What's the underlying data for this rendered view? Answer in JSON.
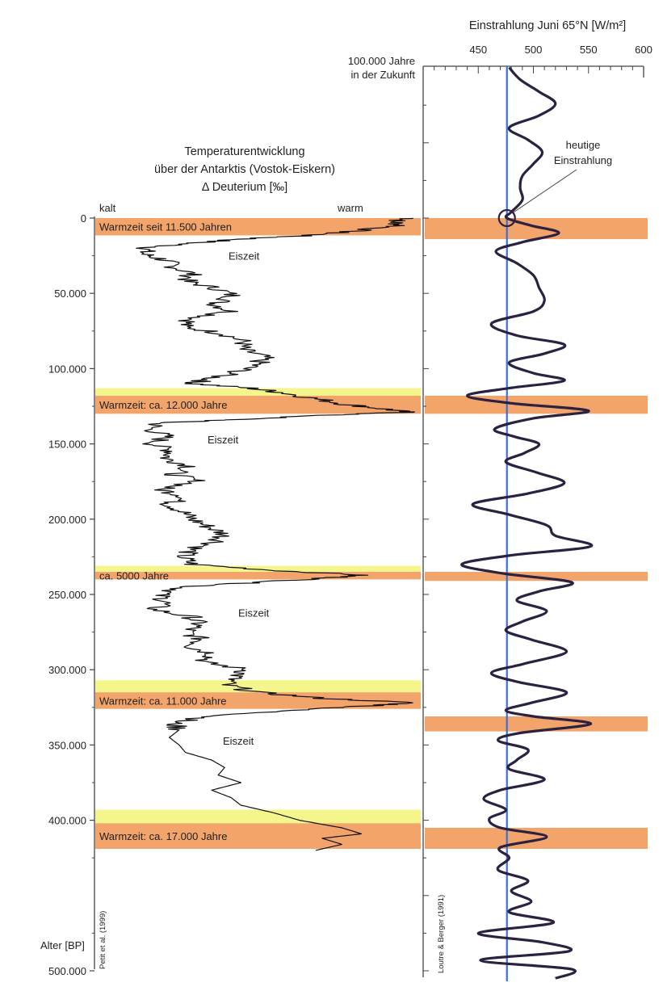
{
  "page": {
    "background": "#ffffff",
    "colors": {
      "warm_band": "#f2a46a",
      "transition_band": "#f4f58a",
      "curve": "#2b2140",
      "temperature_line": "#111111",
      "present_line": "#3d6fd6"
    }
  },
  "left_panel": {
    "title_lines": [
      "Temperaturentwicklung",
      "über der Antarktis (Vostok-Eiskern)",
      "Δ Deuterium [‰]"
    ],
    "label_cold": "kalt",
    "label_warm": "warm",
    "axis_title": "Alter [BP]",
    "credit": "Petit et al. (1999)",
    "glacial_labels": [
      "Eiszeit",
      "Eiszeit",
      "Eiszeit",
      "Eiszeit"
    ]
  },
  "right_panel": {
    "axis_title": "Einstrahlung Juni 65°N [W/m²]",
    "future_label_lines": [
      "100.000 Jahre",
      "in der Zukunft"
    ],
    "present_annotation_lines": [
      "heutige",
      "Einstrahlung"
    ],
    "credit": "Loutre & Berger (1991)"
  },
  "chart_data": [
    {
      "type": "line",
      "title": "Temperaturentwicklung über der Antarktis (Vostok-Eiskern) Δ Deuterium [‰]",
      "ylabel": "Alter [BP]",
      "y_axis": {
        "inverted": true,
        "ylim": [
          0,
          500000
        ],
        "ticks": [
          0,
          50000,
          100000,
          150000,
          200000,
          250000,
          300000,
          350000,
          400000,
          500000
        ],
        "tick_labels": [
          "0",
          "50.000",
          "100.000",
          "150.000",
          "200.000",
          "250.000",
          "300.000",
          "350.000",
          "400.000",
          "500.000"
        ]
      },
      "x_axis": {
        "label_left": "kalt",
        "label_right": "warm",
        "relative_range": [
          0,
          1
        ]
      },
      "series": [
        {
          "points": [
            [
              0,
              0.98
            ],
            [
              2000,
              0.92
            ],
            [
              5000,
              0.94
            ],
            [
              9000,
              0.78
            ],
            [
              11500,
              0.66
            ],
            [
              14000,
              0.45
            ],
            [
              17000,
              0.28
            ],
            [
              20000,
              0.16
            ],
            [
              24000,
              0.15
            ],
            [
              28000,
              0.22
            ],
            [
              32000,
              0.24
            ],
            [
              37000,
              0.3
            ],
            [
              42000,
              0.28
            ],
            [
              47000,
              0.38
            ],
            [
              52000,
              0.43
            ],
            [
              57000,
              0.37
            ],
            [
              62000,
              0.42
            ],
            [
              67000,
              0.3
            ],
            [
              72000,
              0.27
            ],
            [
              77000,
              0.4
            ],
            [
              82000,
              0.46
            ],
            [
              87000,
              0.45
            ],
            [
              92000,
              0.52
            ],
            [
              97000,
              0.5
            ],
            [
              102000,
              0.44
            ],
            [
              107000,
              0.35
            ],
            [
              110000,
              0.3
            ],
            [
              113000,
              0.48
            ],
            [
              116000,
              0.58
            ],
            [
              120000,
              0.68
            ],
            [
              124000,
              0.78
            ],
            [
              127000,
              0.9
            ],
            [
              129000,
              0.96
            ],
            [
              131000,
              0.7
            ],
            [
              134000,
              0.42
            ],
            [
              136000,
              0.2
            ],
            [
              140000,
              0.17
            ],
            [
              145000,
              0.22
            ],
            [
              150000,
              0.18
            ],
            [
              155000,
              0.24
            ],
            [
              160000,
              0.22
            ],
            [
              165000,
              0.3
            ],
            [
              170000,
              0.24
            ],
            [
              175000,
              0.32
            ],
            [
              180000,
              0.2
            ],
            [
              185000,
              0.28
            ],
            [
              190000,
              0.23
            ],
            [
              195000,
              0.27
            ],
            [
              200000,
              0.3
            ],
            [
              205000,
              0.35
            ],
            [
              210000,
              0.4
            ],
            [
              215000,
              0.38
            ],
            [
              220000,
              0.3
            ],
            [
              225000,
              0.27
            ],
            [
              230000,
              0.3
            ],
            [
              234000,
              0.55
            ],
            [
              237000,
              0.82
            ],
            [
              239000,
              0.73
            ],
            [
              242000,
              0.5
            ],
            [
              245000,
              0.28
            ],
            [
              250000,
              0.2
            ],
            [
              255000,
              0.22
            ],
            [
              260000,
              0.18
            ],
            [
              265000,
              0.3
            ],
            [
              270000,
              0.32
            ],
            [
              275000,
              0.28
            ],
            [
              280000,
              0.33
            ],
            [
              285000,
              0.3
            ],
            [
              290000,
              0.37
            ],
            [
              295000,
              0.33
            ],
            [
              300000,
              0.47
            ],
            [
              305000,
              0.43
            ],
            [
              310000,
              0.4
            ],
            [
              315000,
              0.5
            ],
            [
              319000,
              0.7
            ],
            [
              322000,
              0.98
            ],
            [
              324000,
              0.85
            ],
            [
              327000,
              0.6
            ],
            [
              331000,
              0.36
            ],
            [
              335000,
              0.24
            ],
            [
              340000,
              0.26
            ],
            [
              345000,
              0.23
            ],
            [
              350000,
              0.26
            ],
            [
              355000,
              0.28
            ],
            [
              360000,
              0.36
            ],
            [
              365000,
              0.4
            ],
            [
              370000,
              0.38
            ],
            [
              375000,
              0.45
            ],
            [
              380000,
              0.36
            ],
            [
              385000,
              0.42
            ],
            [
              390000,
              0.45
            ],
            [
              395000,
              0.55
            ],
            [
              400000,
              0.63
            ],
            [
              405000,
              0.76
            ],
            [
              409000,
              0.82
            ],
            [
              412000,
              0.7
            ],
            [
              416000,
              0.76
            ],
            [
              420000,
              0.68
            ]
          ]
        }
      ],
      "warm_periods": [
        {
          "from": 0,
          "to": 11500,
          "label": "Warmzeit seit 11.500 Jahren"
        },
        {
          "from": 118000,
          "to": 130000,
          "label": "Warmzeit: ca. 12.000 Jahre",
          "transition_from": 113000
        },
        {
          "from": 235000,
          "to": 240000,
          "label": "ca. 5000 Jahre",
          "transition_from": 231000
        },
        {
          "from": 315000,
          "to": 326000,
          "label": "Warmzeit: ca. 11.000 Jahre",
          "transition_from": 307000
        },
        {
          "from": 402000,
          "to": 419000,
          "label": "Warmzeit: ca. 17.000 Jahre",
          "transition_from": 393000
        }
      ],
      "glacial_label_ages": [
        25000,
        147000,
        262000,
        347000
      ]
    },
    {
      "type": "line",
      "title": "Einstrahlung Juni 65°N [W/m²]",
      "xlabel": "Einstrahlung Juni 65°N [W/m²]",
      "x_axis": {
        "xlim": [
          400,
          600
        ],
        "ticks": [
          450,
          500,
          550,
          600
        ]
      },
      "y_axis": {
        "inverted": true,
        "ylim": [
          -100000,
          500000
        ],
        "top_label": "100.000 Jahre in der Zukunft"
      },
      "present_value": 476,
      "series": [
        {
          "points": [
            [
              -100000,
              478
            ],
            [
              -92000,
              488
            ],
            [
              -84000,
              505
            ],
            [
              -76000,
              520
            ],
            [
              -68000,
              505
            ],
            [
              -60000,
              478
            ],
            [
              -52000,
              495
            ],
            [
              -44000,
              508
            ],
            [
              -36000,
              500
            ],
            [
              -28000,
              490
            ],
            [
              -20000,
              488
            ],
            [
              -12000,
              490
            ],
            [
              -4000,
              480
            ],
            [
              0,
              476
            ],
            [
              5000,
              498
            ],
            [
              10000,
              523
            ],
            [
              16000,
              490
            ],
            [
              22000,
              466
            ],
            [
              30000,
              485
            ],
            [
              38000,
              500
            ],
            [
              46000,
              505
            ],
            [
              55000,
              510
            ],
            [
              62000,
              500
            ],
            [
              70000,
              462
            ],
            [
              78000,
              485
            ],
            [
              84000,
              528
            ],
            [
              90000,
              510
            ],
            [
              96000,
              478
            ],
            [
              103000,
              500
            ],
            [
              108000,
              528
            ],
            [
              113000,
              478
            ],
            [
              118000,
              440
            ],
            [
              123000,
              480
            ],
            [
              128000,
              550
            ],
            [
              133000,
              500
            ],
            [
              140000,
              465
            ],
            [
              145000,
              482
            ],
            [
              150000,
              505
            ],
            [
              156000,
              492
            ],
            [
              162000,
              475
            ],
            [
              169000,
              503
            ],
            [
              176000,
              528
            ],
            [
              183000,
              495
            ],
            [
              190000,
              445
            ],
            [
              197000,
              478
            ],
            [
              204000,
              512
            ],
            [
              211000,
              520
            ],
            [
              218000,
              552
            ],
            [
              224000,
              480
            ],
            [
              230000,
              435
            ],
            [
              236000,
              472
            ],
            [
              242000,
              535
            ],
            [
              248000,
              505
            ],
            [
              254000,
              485
            ],
            [
              261000,
              512
            ],
            [
              268000,
              490
            ],
            [
              274000,
              475
            ],
            [
              280000,
              498
            ],
            [
              288000,
              530
            ],
            [
              296000,
              492
            ],
            [
              302000,
              462
            ],
            [
              308000,
              485
            ],
            [
              315000,
              530
            ],
            [
              322000,
              498
            ],
            [
              327000,
              475
            ],
            [
              331000,
              500
            ],
            [
              336000,
              552
            ],
            [
              342000,
              488
            ],
            [
              347000,
              468
            ],
            [
              353000,
              495
            ],
            [
              360000,
              485
            ],
            [
              366000,
              478
            ],
            [
              373000,
              510
            ],
            [
              380000,
              470
            ],
            [
              386000,
              455
            ],
            [
              393000,
              475
            ],
            [
              399000,
              460
            ],
            [
              405000,
              470
            ],
            [
              411000,
              512
            ],
            [
              418000,
              470
            ],
            [
              425000,
              478
            ],
            [
              433000,
              468
            ],
            [
              440000,
              495
            ],
            [
              447000,
              480
            ],
            [
              454000,
              498
            ],
            [
              461000,
              478
            ],
            [
              468000,
              518
            ],
            [
              475000,
              450
            ],
            [
              481000,
              508
            ],
            [
              487000,
              532
            ],
            [
              493000,
              452
            ],
            [
              499000,
              535
            ],
            [
              505000,
              520
            ]
          ]
        }
      ],
      "warm_bands_ages": [
        [
          0,
          14000
        ],
        [
          118000,
          130000
        ],
        [
          235000,
          241000
        ],
        [
          331000,
          341000
        ],
        [
          405000,
          419000
        ]
      ]
    }
  ]
}
